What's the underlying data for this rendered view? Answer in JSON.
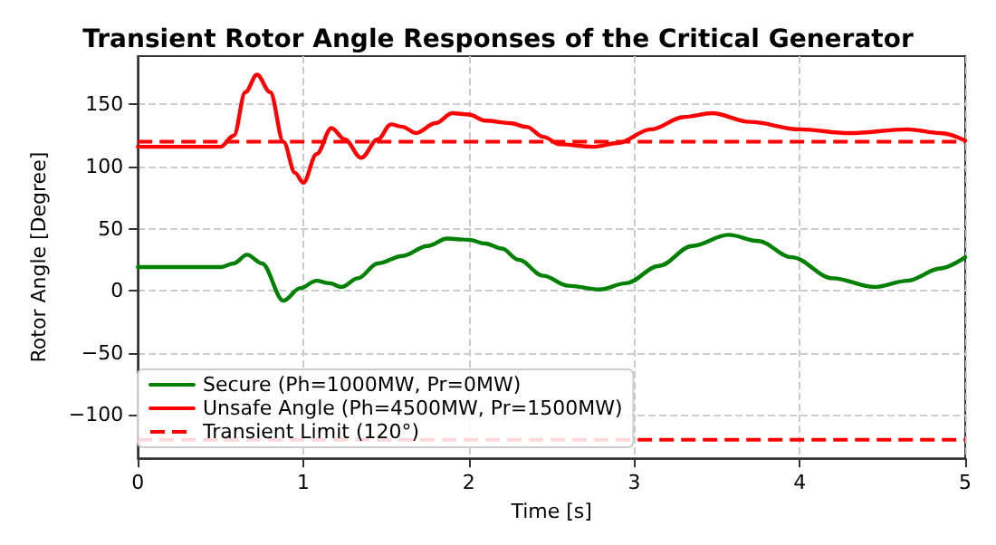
{
  "chart_data": {
    "type": "line",
    "title": "Transient Rotor Angle Responses of the Critical Generator",
    "xlabel": "Time [s]",
    "ylabel": "Rotor Angle [Degree]",
    "xlim": [
      0,
      5
    ],
    "xticks": [
      0,
      1,
      2,
      3,
      4,
      5
    ],
    "ylim": [
      -135,
      189
    ],
    "yticks": [
      -100,
      -50,
      0,
      50,
      100,
      150
    ],
    "grid": true,
    "legend": "bottom left",
    "line_style": "solid",
    "marker": "none",
    "series": [
      {
        "name": "Secure (Ph=1000MW, Pr=0MW)",
        "color": "#008000",
        "x": [
          0,
          0.5,
          0.58,
          0.66,
          0.75,
          0.88,
          0.98,
          1.08,
          1.16,
          1.23,
          1.33,
          1.45,
          1.6,
          1.75,
          1.87,
          2.0,
          2.1,
          2.2,
          2.3,
          2.45,
          2.6,
          2.79,
          2.95,
          3.15,
          3.35,
          3.57,
          3.75,
          3.95,
          4.2,
          4.45,
          4.65,
          4.85,
          5.0
        ],
        "values": [
          19,
          19,
          22,
          29,
          22,
          -8,
          2,
          8,
          6,
          3,
          10,
          22,
          28,
          36,
          42,
          41,
          38,
          34,
          25,
          12,
          4,
          1,
          6,
          20,
          36,
          45,
          40,
          27,
          10,
          3,
          8,
          18,
          27
        ]
      },
      {
        "name": "Unsafe Angle (Ph=4500MW, Pr=1500MW)",
        "color": "#ff0000",
        "x": [
          0,
          0.5,
          0.58,
          0.65,
          0.72,
          0.8,
          0.88,
          0.95,
          1.0,
          1.08,
          1.17,
          1.25,
          1.35,
          1.45,
          1.53,
          1.6,
          1.68,
          1.8,
          1.9,
          2.0,
          2.1,
          2.25,
          2.35,
          2.45,
          2.55,
          2.75,
          2.9,
          3.1,
          3.3,
          3.47,
          3.7,
          4.0,
          4.3,
          4.65,
          4.85,
          5.0
        ],
        "values": [
          116,
          116,
          125,
          160,
          174,
          160,
          120,
          95,
          87,
          110,
          131,
          122,
          107,
          122,
          134,
          132,
          127,
          135,
          143,
          142,
          137,
          135,
          132,
          124,
          118,
          116,
          119,
          130,
          140,
          143,
          136,
          130,
          127,
          130,
          127,
          121
        ]
      }
    ],
    "ref_lines": [
      {
        "axis": "y",
        "value": 120,
        "label": "Transient Limit (120°)",
        "color": "#ff0000",
        "line_style": "dashed"
      },
      {
        "axis": "y",
        "value": -120,
        "color": "#ff0000",
        "line_style": "dashed"
      }
    ]
  }
}
